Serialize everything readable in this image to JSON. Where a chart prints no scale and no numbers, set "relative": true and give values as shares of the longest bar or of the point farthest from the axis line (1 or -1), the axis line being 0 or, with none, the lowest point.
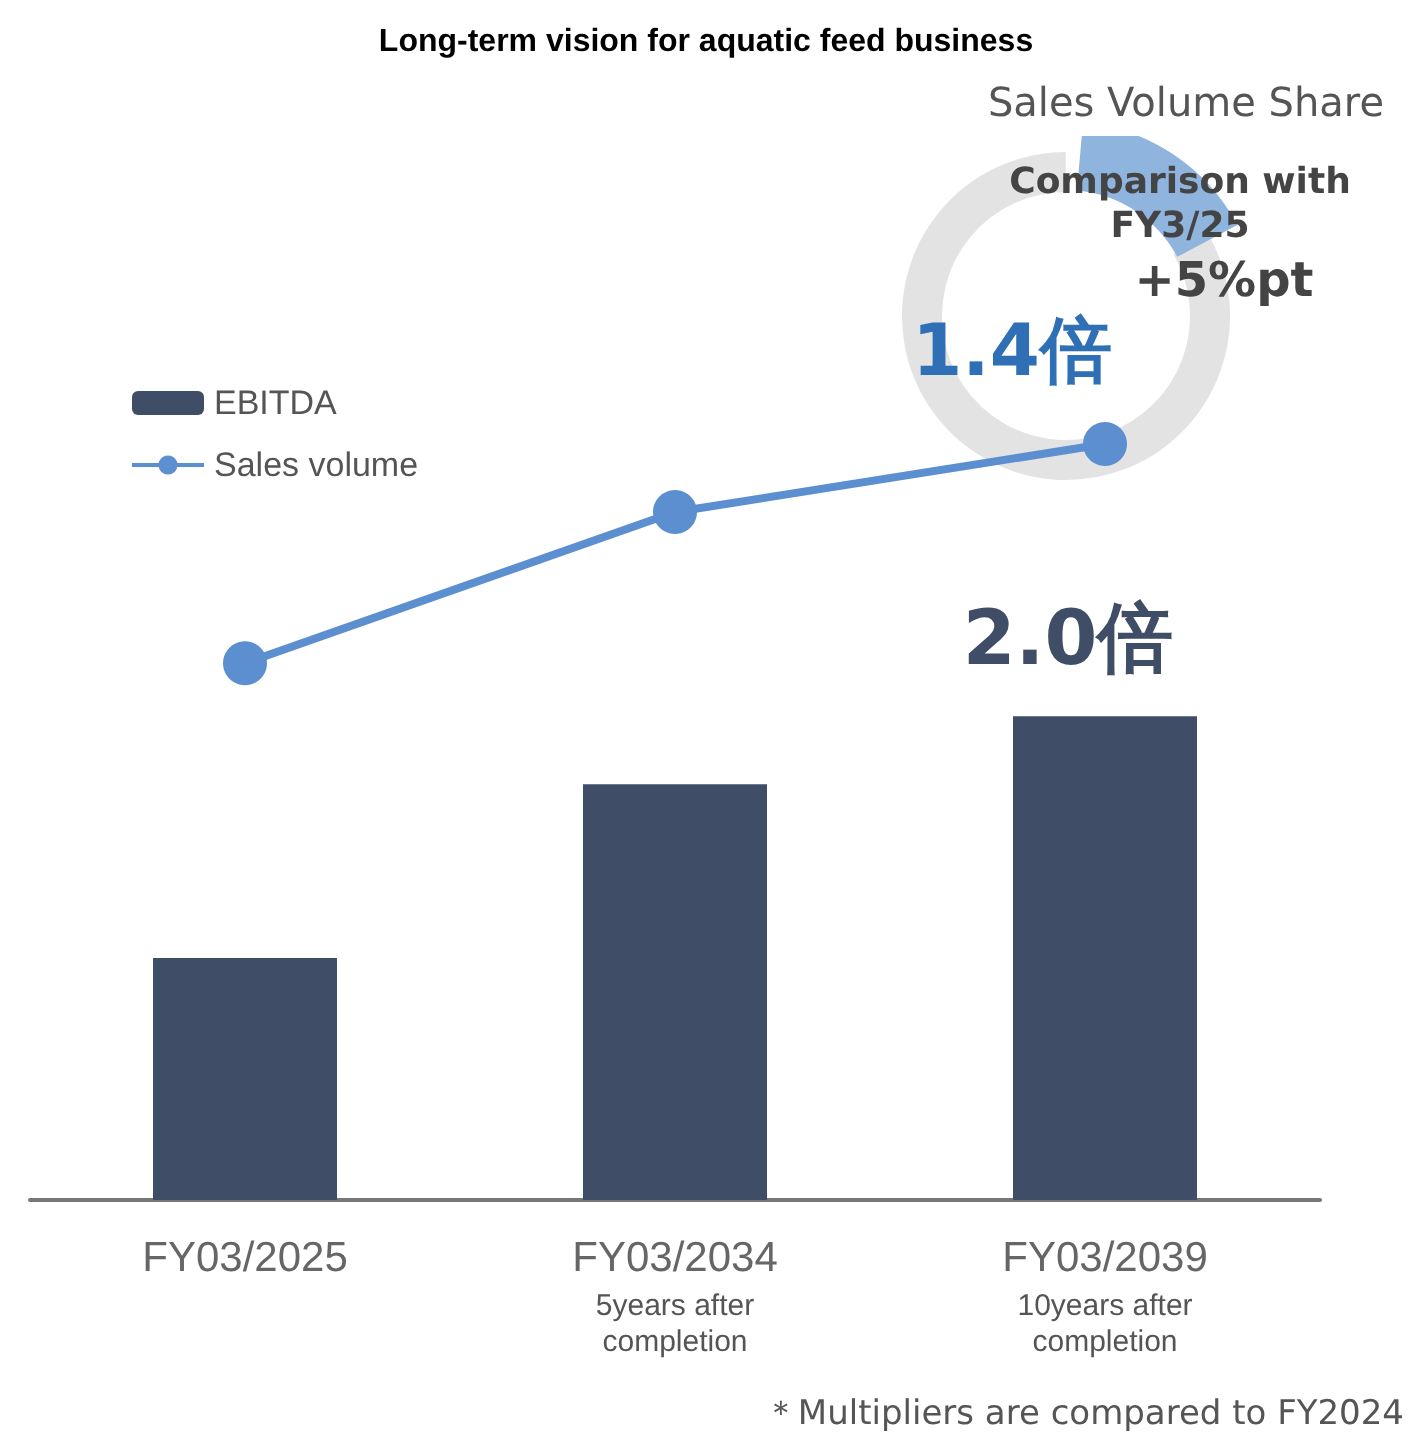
{
  "chart_data": {
    "type": "bar",
    "title": "Long-term vision for aquatic feed business",
    "relative": true,
    "legend": "top left",
    "marker": "circle",
    "categories": [
      "FY03/2025",
      "FY03/2034\n5years after\ncompletion",
      "FY03/2039\n10years after\ncompletion"
    ],
    "series": [
      {
        "name": "EBITDA",
        "color": "#3f4e66",
        "values": [
          0.32,
          0.55,
          0.64
        ]
      },
      {
        "name": "Sales volume",
        "type": "line",
        "color": "#5b8fd0",
        "values": [
          0.71,
          0.91,
          1.0
        ]
      }
    ],
    "annotations": [
      "Sales Volume Share",
      "Comparison with\nFY3/25",
      "+5%pt",
      "1.4倍",
      "2.0倍",
      "＊Multipliers are compared to FY2024"
    ]
  }
}
